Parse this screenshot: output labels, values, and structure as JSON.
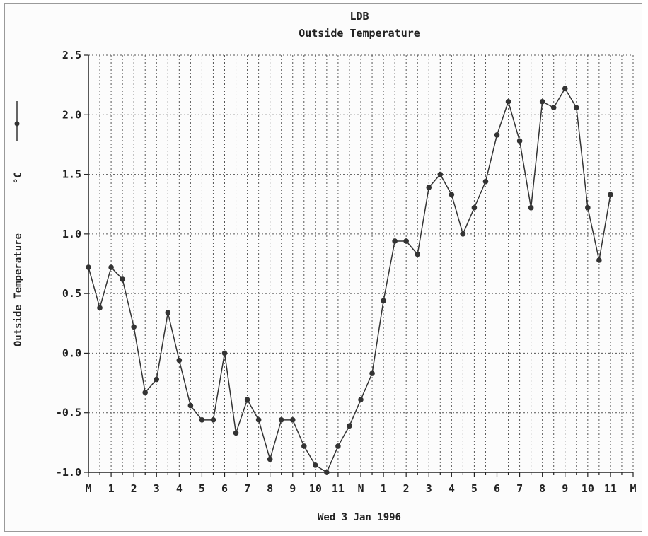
{
  "chart_data": {
    "type": "line",
    "title": "LDB",
    "subtitle": "Outside Temperature",
    "xlabel": "Wed  3 Jan 1996",
    "ylabel": "Outside Temperature",
    "yunit": "°C",
    "ylim": [
      -1.0,
      2.5
    ],
    "yticks": [
      "2.5",
      "2.0",
      "1.5",
      "1.0",
      "0.5",
      "0.0",
      "-0.5",
      "-1.0"
    ],
    "xticks": [
      "M",
      "1",
      "2",
      "3",
      "4",
      "5",
      "6",
      "7",
      "8",
      "9",
      "10",
      "11",
      "N",
      "1",
      "2",
      "3",
      "4",
      "5",
      "6",
      "7",
      "8",
      "9",
      "10",
      "11",
      "M"
    ],
    "grid": true,
    "series": [
      {
        "x": [
          0,
          0.5,
          1,
          1.5,
          2,
          2.5,
          3,
          3.5,
          4,
          4.5,
          5,
          5.5,
          6,
          6.5,
          7,
          7.5,
          8,
          8.5,
          9,
          9.5,
          10,
          10.5,
          11,
          11.5,
          12,
          12.5,
          13,
          13.5,
          14,
          14.5,
          15,
          15.5,
          16,
          16.5,
          17,
          17.5,
          18,
          18.5,
          19,
          19.5,
          20,
          20.5,
          21,
          21.5,
          22,
          22.5,
          23
        ],
        "values": [
          0.72,
          0.38,
          0.72,
          0.62,
          0.22,
          -0.33,
          -0.22,
          0.34,
          -0.06,
          -0.44,
          -0.56,
          -0.56,
          0.0,
          -0.67,
          -0.39,
          -0.56,
          -0.89,
          -0.56,
          -0.56,
          -0.78,
          -0.94,
          -1.0,
          -0.78,
          -0.61,
          -0.39,
          -0.17,
          0.44,
          0.94,
          0.94,
          0.83,
          1.39,
          1.5,
          1.33,
          1.0,
          1.22,
          1.44,
          1.83,
          2.11,
          1.78,
          1.22,
          2.11,
          2.06,
          2.22,
          2.06,
          1.22,
          0.78,
          1.33
        ],
        "color": "#333333"
      }
    ]
  }
}
